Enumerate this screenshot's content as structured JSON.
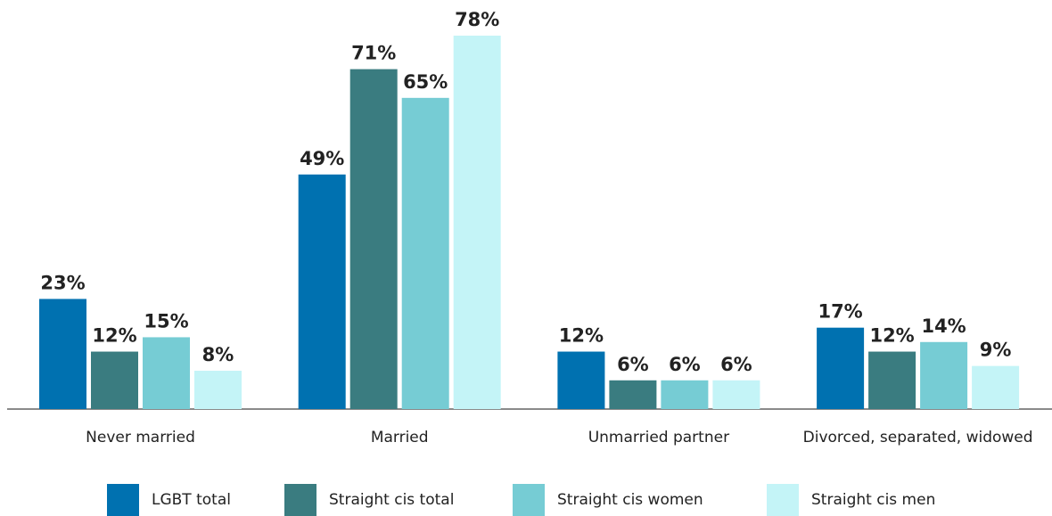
{
  "chart_data": {
    "type": "bar",
    "categories": [
      "Never married",
      "Married",
      "Unmarried partner",
      "Divorced, separated, widowed"
    ],
    "series": [
      {
        "name": "LGBT total",
        "color": "#0071b0",
        "values": [
          23,
          49,
          12,
          17
        ],
        "value_labels": [
          "23%",
          "49%",
          "12%",
          "17%"
        ]
      },
      {
        "name": "Straight cis total",
        "color": "#3a7c80",
        "values": [
          12,
          71,
          6,
          12
        ],
        "value_labels": [
          "12%",
          "71%",
          "6%",
          "12%"
        ]
      },
      {
        "name": "Straight cis women",
        "color": "#76ccd4",
        "values": [
          15,
          65,
          6,
          14
        ],
        "value_labels": [
          "15%",
          "65%",
          "6%",
          "14%"
        ]
      },
      {
        "name": "Straight cis men",
        "color": "#c4f4f7",
        "values": [
          8,
          78,
          6,
          9
        ],
        "value_labels": [
          "8%",
          "78%",
          "6%",
          "9%"
        ]
      }
    ]
  }
}
